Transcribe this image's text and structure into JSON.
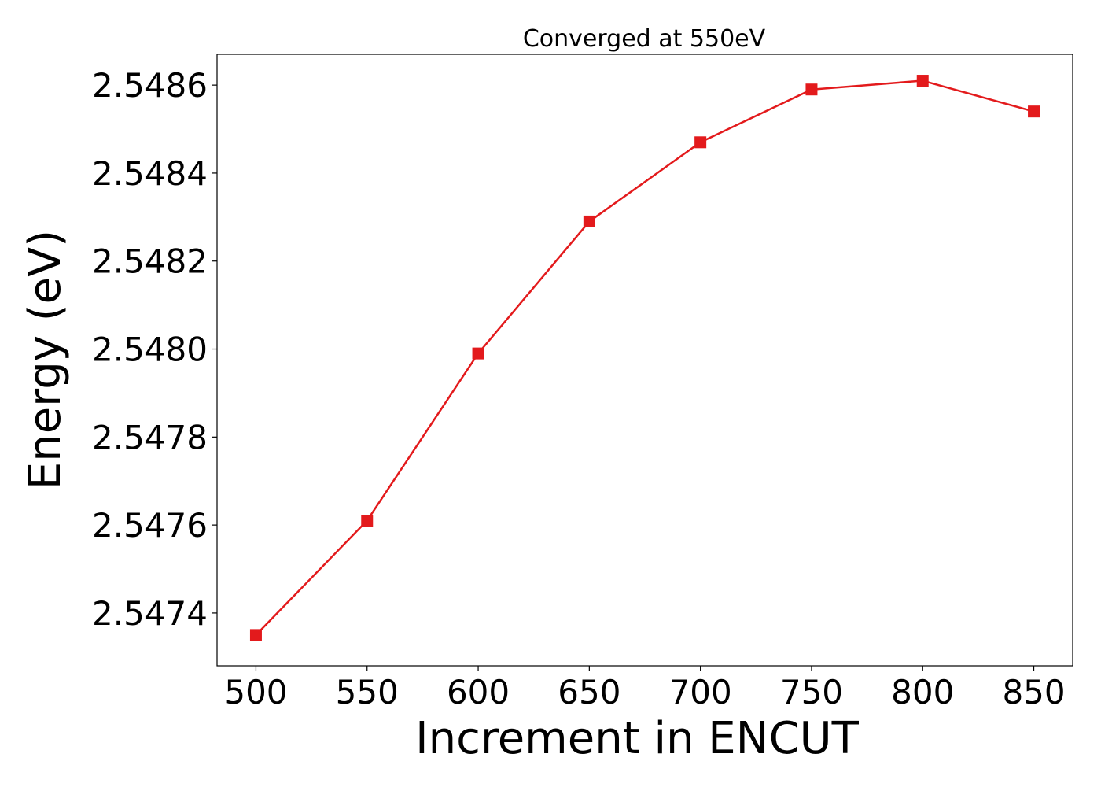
{
  "chart_data": {
    "type": "line",
    "title": "Converged at 550eV",
    "xlabel": "Increment in ENCUT",
    "ylabel": "Energy (eV)",
    "x": [
      500,
      550,
      600,
      650,
      700,
      750,
      800,
      850
    ],
    "series": [
      {
        "values": [
          2.54735,
          2.54761,
          2.54799,
          2.54829,
          2.54847,
          2.54859,
          2.54861,
          2.54854
        ],
        "color": "#e31a1c",
        "marker": "square"
      }
    ],
    "xticks": [
      500,
      550,
      600,
      650,
      700,
      750,
      800,
      850
    ],
    "xtick_labels": [
      "500",
      "550",
      "600",
      "650",
      "700",
      "750",
      "800",
      "850"
    ],
    "yticks": [
      2.5474,
      2.5476,
      2.5478,
      2.548,
      2.5482,
      2.5484,
      2.5486
    ],
    "ytick_labels": [
      "2.5474",
      "2.5476",
      "2.5478",
      "2.5480",
      "2.5482",
      "2.5484",
      "2.5486"
    ],
    "xlim": [
      482.5,
      867.5
    ],
    "ylim": [
      2.54728,
      2.54867
    ],
    "grid": false,
    "legend": false
  }
}
